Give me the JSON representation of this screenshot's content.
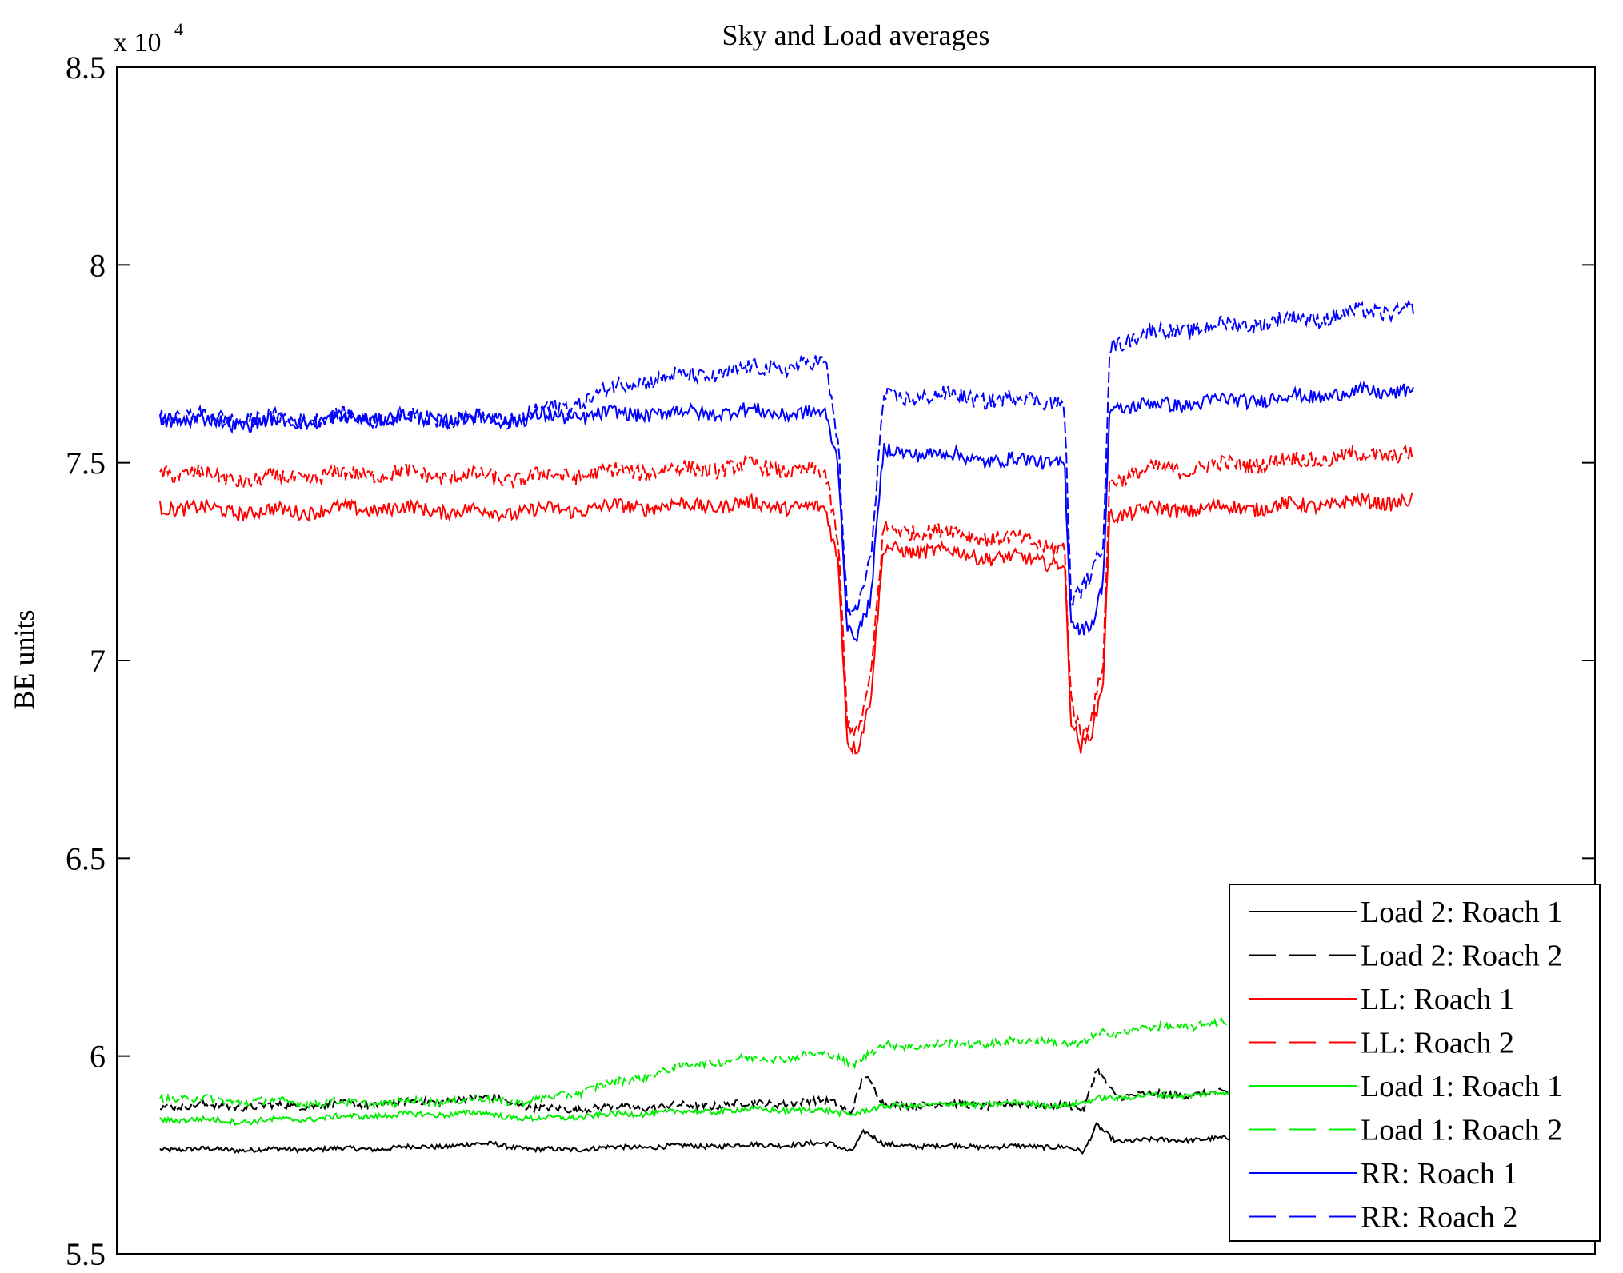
{
  "chart_data": {
    "type": "line",
    "title": "Sky and Load averages",
    "xlabel": "",
    "ylabel": "BE units",
    "y_exponent_base": "x 10",
    "y_exponent_power": "4",
    "ylim": [
      5.5,
      8.5
    ],
    "yticks": [
      5.5,
      6,
      6.5,
      7,
      7.5,
      8,
      8.5
    ],
    "ytick_labels": [
      "5.5",
      "6",
      "6.5",
      "7",
      "7.5",
      "8",
      "8.5"
    ],
    "xlim": [
      0,
      1
    ],
    "x_ticks_visible": false,
    "grid": false,
    "legend_position": "bottom-right",
    "series": [
      {
        "name": "Load 2: Roach 1",
        "color": "#000000",
        "style": "solid",
        "x": [
          0.03,
          0.1,
          0.2,
          0.29,
          0.32,
          0.4,
          0.5,
          0.55,
          0.565,
          0.575,
          0.59,
          0.62,
          0.7,
          0.73,
          0.745,
          0.755,
          0.77,
          0.85,
          1.0
        ],
        "y": [
          5.765,
          5.763,
          5.766,
          5.778,
          5.762,
          5.77,
          5.775,
          5.778,
          5.76,
          5.81,
          5.775,
          5.773,
          5.77,
          5.772,
          5.755,
          5.825,
          5.785,
          5.79,
          5.805
        ]
      },
      {
        "name": "Load 2: Roach 2",
        "color": "#000000",
        "style": "dashed",
        "x": [
          0.03,
          0.1,
          0.2,
          0.29,
          0.32,
          0.4,
          0.5,
          0.55,
          0.565,
          0.575,
          0.59,
          0.62,
          0.7,
          0.73,
          0.745,
          0.755,
          0.77,
          0.85,
          1.0
        ],
        "y": [
          5.875,
          5.872,
          5.878,
          5.895,
          5.865,
          5.87,
          5.88,
          5.885,
          5.86,
          5.955,
          5.875,
          5.878,
          5.875,
          5.878,
          5.86,
          5.965,
          5.9,
          5.905,
          5.915
        ]
      },
      {
        "name": "LL: Roach 1",
        "color": "#ff0000",
        "style": "solid",
        "x": [
          0.03,
          0.1,
          0.2,
          0.3,
          0.4,
          0.5,
          0.545,
          0.555,
          0.562,
          0.57,
          0.58,
          0.59,
          0.62,
          0.68,
          0.72,
          0.73,
          0.735,
          0.743,
          0.752,
          0.76,
          0.765,
          0.8,
          0.9,
          1.0
        ],
        "y": [
          7.39,
          7.375,
          7.385,
          7.375,
          7.39,
          7.395,
          7.38,
          7.25,
          6.8,
          6.78,
          6.9,
          7.28,
          7.28,
          7.26,
          7.25,
          7.25,
          6.85,
          6.77,
          6.82,
          6.95,
          7.37,
          7.38,
          7.39,
          7.405
        ]
      },
      {
        "name": "LL: Roach 2",
        "color": "#ff0000",
        "style": "dashed",
        "x": [
          0.03,
          0.1,
          0.2,
          0.3,
          0.4,
          0.5,
          0.545,
          0.555,
          0.562,
          0.57,
          0.58,
          0.59,
          0.62,
          0.68,
          0.72,
          0.73,
          0.735,
          0.743,
          0.752,
          0.76,
          0.765,
          0.8,
          0.9,
          1.0
        ],
        "y": [
          7.48,
          7.455,
          7.475,
          7.46,
          7.48,
          7.49,
          7.47,
          7.3,
          6.85,
          6.82,
          6.95,
          7.33,
          7.33,
          7.31,
          7.29,
          7.29,
          6.9,
          6.8,
          6.86,
          7.0,
          7.46,
          7.48,
          7.505,
          7.525
        ]
      },
      {
        "name": "Load 1: Roach 1",
        "color": "#00ee00",
        "style": "solid",
        "x": [
          0.03,
          0.1,
          0.2,
          0.28,
          0.32,
          0.4,
          0.5,
          0.55,
          0.565,
          0.6,
          0.7,
          0.73,
          0.745,
          0.76,
          0.85,
          1.0
        ],
        "y": [
          5.84,
          5.835,
          5.85,
          5.855,
          5.84,
          5.855,
          5.865,
          5.86,
          5.855,
          5.875,
          5.88,
          5.875,
          5.88,
          5.895,
          5.905,
          5.93
        ]
      },
      {
        "name": "Load 1: Roach 2",
        "color": "#00ee00",
        "style": "dashed",
        "x": [
          0.03,
          0.1,
          0.2,
          0.28,
          0.32,
          0.38,
          0.45,
          0.55,
          0.565,
          0.59,
          0.65,
          0.72,
          0.74,
          0.76,
          0.8,
          0.86
        ],
        "y": [
          5.895,
          5.885,
          5.88,
          5.89,
          5.885,
          5.93,
          5.985,
          6.005,
          5.98,
          6.025,
          6.03,
          6.04,
          6.025,
          6.06,
          6.07,
          6.085
        ]
      },
      {
        "name": "RR: Roach 1",
        "color": "#0000ff",
        "style": "solid",
        "x": [
          0.03,
          0.1,
          0.2,
          0.3,
          0.4,
          0.5,
          0.545,
          0.555,
          0.562,
          0.57,
          0.58,
          0.59,
          0.62,
          0.68,
          0.72,
          0.73,
          0.735,
          0.743,
          0.752,
          0.76,
          0.765,
          0.8,
          0.9,
          1.0
        ],
        "y": [
          7.61,
          7.6,
          7.615,
          7.61,
          7.625,
          7.63,
          7.62,
          7.5,
          7.08,
          7.07,
          7.15,
          7.53,
          7.525,
          7.505,
          7.505,
          7.505,
          7.1,
          7.07,
          7.09,
          7.2,
          7.64,
          7.645,
          7.665,
          7.685
        ]
      },
      {
        "name": "RR: Roach 2",
        "color": "#0000ff",
        "style": "dashed",
        "x": [
          0.03,
          0.1,
          0.2,
          0.3,
          0.35,
          0.4,
          0.45,
          0.5,
          0.545,
          0.555,
          0.562,
          0.57,
          0.58,
          0.59,
          0.62,
          0.68,
          0.72,
          0.73,
          0.735,
          0.743,
          0.752,
          0.76,
          0.765,
          0.8,
          0.9,
          1.0
        ],
        "y": [
          7.62,
          7.61,
          7.615,
          7.61,
          7.65,
          7.71,
          7.72,
          7.74,
          7.75,
          7.55,
          7.12,
          7.14,
          7.25,
          7.66,
          7.67,
          7.66,
          7.66,
          7.65,
          7.15,
          7.17,
          7.22,
          7.3,
          7.8,
          7.83,
          7.86,
          7.89
        ]
      }
    ],
    "legend": [
      "Load 2: Roach 1",
      "Load 2: Roach 2",
      "LL: Roach 1",
      "LL: Roach 2",
      "Load 1: Roach 1",
      "Load 1: Roach 2",
      "RR: Roach 1",
      "RR: Roach 2"
    ]
  }
}
